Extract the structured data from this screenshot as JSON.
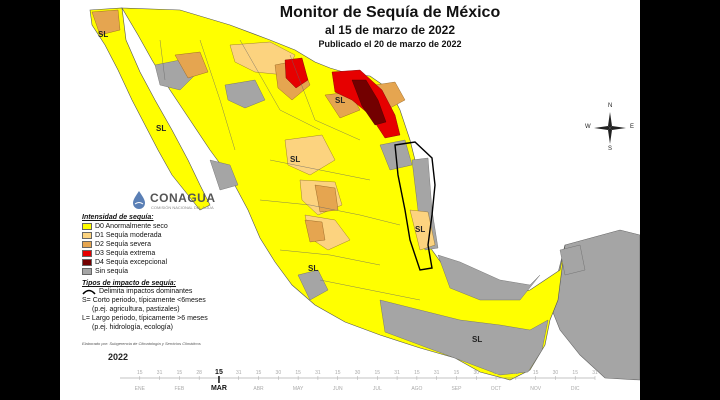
{
  "title": {
    "main": "Monitor de Sequía de México",
    "date": "al 15 de marzo de 2022",
    "published": "Publicado el 20 de marzo de 2022"
  },
  "logo": {
    "name": "CONAGUA",
    "subtitle": "COMISIÓN NACIONAL DEL AGUA"
  },
  "compass": {
    "n": "N",
    "s": "S",
    "e": "E",
    "w": "W"
  },
  "legend": {
    "intensity_header": "Intensidad de sequía:",
    "items": [
      {
        "label": "D0 Anormalmente seco",
        "color": "#ffff00"
      },
      {
        "label": "D1 Sequía moderada",
        "color": "#fcd37f"
      },
      {
        "label": "D2 Sequía severa",
        "color": "#e5a550"
      },
      {
        "label": "D3 Sequía extrema",
        "color": "#e60000"
      },
      {
        "label": "D4 Sequía excepcional",
        "color": "#730000"
      },
      {
        "label": "Sin sequía",
        "color": "#a5a5a5"
      }
    ],
    "impact_header": "Tipos de impacto de sequía:",
    "impact_line": "Delimita impactos dominantes",
    "short_term": "S= Corto periodo, típicamente <6meses",
    "short_term_ex": "(p.ej. agricultura, pastizales)",
    "long_term": "L= Largo periodo, típicamente >6 meses",
    "long_term_ex": "(p.ej. hidrología, ecología)"
  },
  "credit": "Elaborado por: Subgerencia de Climatología y Servicios Climáticos",
  "map_labels": [
    "SL",
    "SL",
    "SL",
    "SL",
    "SL",
    "SL",
    "SL"
  ],
  "timeline": {
    "year": "2022",
    "selected_day": "15",
    "selected_month": "MAR",
    "months": [
      "ENE",
      "FEB",
      "MAR",
      "ABR",
      "MAY",
      "JUN",
      "JUL",
      "AGO",
      "SEP",
      "OCT",
      "NOV",
      "DIC"
    ],
    "days": [
      "15",
      "31",
      "15",
      "28",
      "15",
      "31",
      "15",
      "30",
      "15",
      "31",
      "15",
      "30",
      "15",
      "31",
      "15",
      "31",
      "15",
      "30",
      "15",
      "31",
      "15",
      "30",
      "15",
      "31"
    ]
  }
}
